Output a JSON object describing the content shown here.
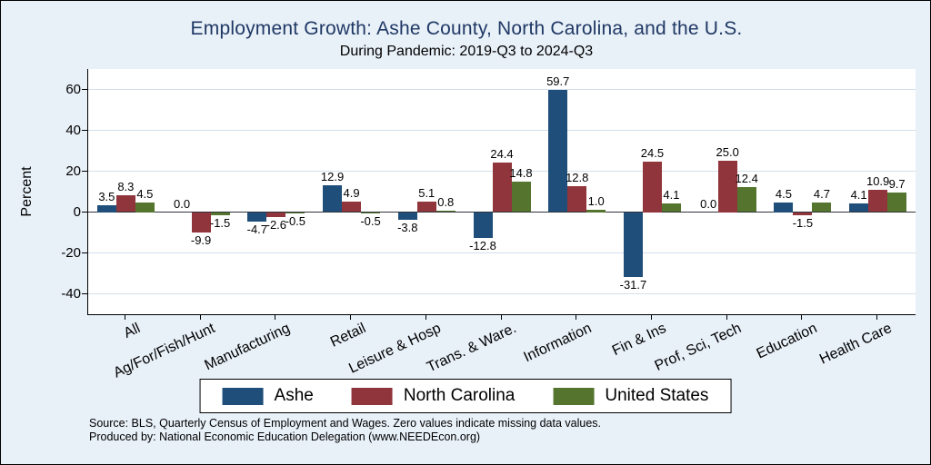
{
  "title": "Employment Growth: Ashe County, North Carolina, and the U.S.",
  "subtitle": "During Pandemic: 2019-Q3 to 2024-Q3",
  "colors": {
    "background": "#e8f0f8",
    "plot_background": "#ffffff",
    "title_text": "#1f3864",
    "ashe": "#1e4e79",
    "north_carolina": "#90353b",
    "united_states": "#55752f"
  },
  "notes": {
    "line1": "Source: BLS, Quarterly Census of Employment and Wages. Zero values indicate missing data values.",
    "line2": "Produced by: National Economic Education Delegation (www.NEEDEcon.org)"
  },
  "chart_data": {
    "type": "bar",
    "title": "Employment Growth: Ashe County, North Carolina, and the U.S.",
    "subtitle": "During Pandemic: 2019-Q3 to 2024-Q3",
    "xlabel": "",
    "ylabel": "Percent",
    "categories": [
      "All",
      "Ag/For/Fish/Hunt",
      "Manufacturing",
      "Retail",
      "Leisure & Hosp",
      "Trans. & Ware.",
      "Information",
      "Fin & Ins",
      "Prof, Sci, Tech",
      "Education",
      "Health Care"
    ],
    "series": [
      {
        "name": "Ashe",
        "color": "#1e4e79",
        "values": [
          3.5,
          0.0,
          -4.7,
          12.9,
          -3.8,
          -12.8,
          59.7,
          -31.7,
          0.0,
          4.5,
          4.1
        ]
      },
      {
        "name": "North Carolina",
        "color": "#90353b",
        "values": [
          8.3,
          -9.9,
          -2.6,
          4.9,
          5.1,
          24.4,
          12.8,
          24.5,
          25.0,
          -1.5,
          10.9
        ]
      },
      {
        "name": "United States",
        "color": "#55752f",
        "values": [
          4.5,
          -1.5,
          -0.5,
          -0.5,
          0.8,
          14.8,
          1.0,
          4.1,
          12.4,
          4.7,
          9.7
        ]
      }
    ],
    "yticks": [
      60,
      40,
      20,
      0,
      -20,
      -40
    ],
    "ylim": [
      -50,
      70
    ],
    "grid": true,
    "legend_position": "bottom",
    "bar_labels": "one_decimal",
    "zero_note": "Zero values indicate missing data values"
  }
}
